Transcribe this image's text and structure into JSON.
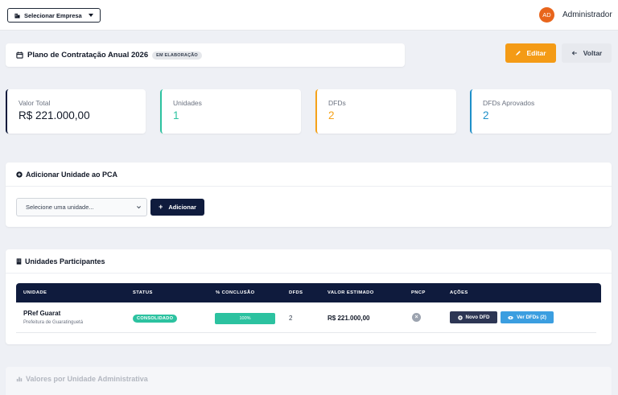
{
  "topbar": {
    "company_button_label": "Selecionar Empresa",
    "avatar_initials": "AD",
    "username": "Administrador"
  },
  "header": {
    "title": "Plano de Contratação Anual 2026",
    "status_badge": "EM ELABORAÇÃO",
    "edit_label": "Editar",
    "back_label": "Voltar"
  },
  "stats": [
    {
      "label": "Valor Total",
      "value": "R$ 221.000,00"
    },
    {
      "label": "Unidades",
      "value": "1"
    },
    {
      "label": "DFDs",
      "value": "2"
    },
    {
      "label": "DFDs Aprovados",
      "value": "2"
    }
  ],
  "add_unit": {
    "title": "Adicionar Unidade ao PCA",
    "select_placeholder": "Selecione uma unidade...",
    "add_label": "Adicionar"
  },
  "units": {
    "title": "Unidades Participantes",
    "columns": [
      "UNIDADE",
      "STATUS",
      "% CONCLUSÃO",
      "DFDS",
      "VALOR ESTIMADO",
      "PNCP",
      "AÇÕES"
    ],
    "rows": [
      {
        "name": "PRef Guarat",
        "subtitle": "Prefeitura de Guaratinguetá",
        "status": "CONSOLIDADO",
        "progress_text": "100%",
        "progress_fraction": 1.0,
        "dfds": "2",
        "valor": "R$ 221.000,00",
        "novo_dfd_label": "Novo DFD",
        "ver_dfds_label": "Ver DFDs (2)"
      }
    ]
  },
  "values_section": {
    "title": "Valores por Unidade Administrativa"
  },
  "colors": {
    "navy": "#0f1b3d",
    "teal": "#2cc2a0",
    "orange": "#f49b16",
    "blue": "#1e8fc9",
    "avatar": "#e8651c"
  }
}
